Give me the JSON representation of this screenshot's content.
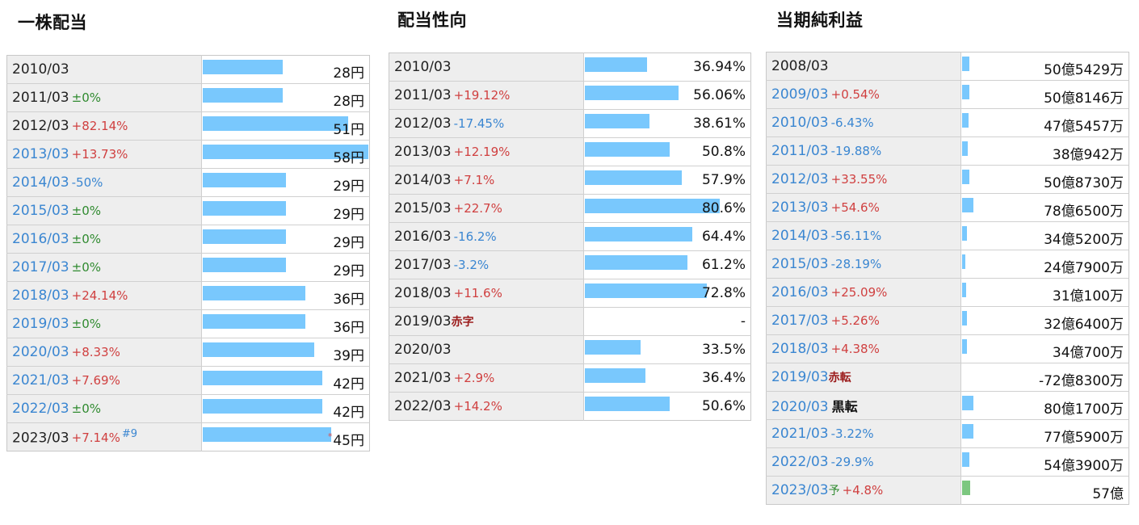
{
  "dividend": {
    "title": "一株配当",
    "max": 58,
    "rows": [
      {
        "year": "2010/03",
        "change": "",
        "dir": "",
        "value": "28円",
        "num": 28,
        "year_color": "black"
      },
      {
        "year": "2011/03",
        "change": "±0%",
        "dir": "zero",
        "value": "28円",
        "num": 28,
        "year_color": "black"
      },
      {
        "year": "2012/03",
        "change": "+82.14%",
        "dir": "pos",
        "value": "51円",
        "num": 51,
        "year_color": "black"
      },
      {
        "year": "2013/03",
        "change": "+13.73%",
        "dir": "pos",
        "value": "58円",
        "num": 58,
        "year_color": "blue"
      },
      {
        "year": "2014/03",
        "change": "-50%",
        "dir": "neg",
        "value": "29円",
        "num": 29,
        "year_color": "blue"
      },
      {
        "year": "2015/03",
        "change": "±0%",
        "dir": "zero",
        "value": "29円",
        "num": 29,
        "year_color": "blue"
      },
      {
        "year": "2016/03",
        "change": "±0%",
        "dir": "zero",
        "value": "29円",
        "num": 29,
        "year_color": "blue"
      },
      {
        "year": "2017/03",
        "change": "±0%",
        "dir": "zero",
        "value": "29円",
        "num": 29,
        "year_color": "blue"
      },
      {
        "year": "2018/03",
        "change": "+24.14%",
        "dir": "pos",
        "value": "36円",
        "num": 36,
        "year_color": "blue"
      },
      {
        "year": "2019/03",
        "change": "±0%",
        "dir": "zero",
        "value": "36円",
        "num": 36,
        "year_color": "blue"
      },
      {
        "year": "2020/03",
        "change": "+8.33%",
        "dir": "pos",
        "value": "39円",
        "num": 39,
        "year_color": "blue"
      },
      {
        "year": "2021/03",
        "change": "+7.69%",
        "dir": "pos",
        "value": "42円",
        "num": 42,
        "year_color": "blue"
      },
      {
        "year": "2022/03",
        "change": "±0%",
        "dir": "zero",
        "value": "42円",
        "num": 42,
        "year_color": "blue"
      },
      {
        "year": "2023/03",
        "change": "+7.14%",
        "dir": "pos",
        "value": "45円",
        "num": 45,
        "year_color": "black",
        "sup": "#9",
        "star": "*"
      }
    ]
  },
  "payout": {
    "title": "配当性向",
    "max": 80.6,
    "rows": [
      {
        "year": "2010/03",
        "change": "",
        "dir": "",
        "value": "36.94%",
        "num": 36.94
      },
      {
        "year": "2011/03",
        "change": "+19.12%",
        "dir": "pos",
        "value": "56.06%",
        "num": 56.06
      },
      {
        "year": "2012/03",
        "change": "-17.45%",
        "dir": "neg",
        "value": "38.61%",
        "num": 38.61
      },
      {
        "year": "2013/03",
        "change": "+12.19%",
        "dir": "pos",
        "value": "50.8%",
        "num": 50.8
      },
      {
        "year": "2014/03",
        "change": "+7.1%",
        "dir": "pos",
        "value": "57.9%",
        "num": 57.9
      },
      {
        "year": "2015/03",
        "change": "+22.7%",
        "dir": "pos",
        "value": "80.6%",
        "num": 80.6
      },
      {
        "year": "2016/03",
        "change": "-16.2%",
        "dir": "neg",
        "value": "64.4%",
        "num": 64.4
      },
      {
        "year": "2017/03",
        "change": "-3.2%",
        "dir": "neg",
        "value": "61.2%",
        "num": 61.2
      },
      {
        "year": "2018/03",
        "change": "+11.6%",
        "dir": "pos",
        "value": "72.8%",
        "num": 72.8
      },
      {
        "year": "2019/03",
        "change": "",
        "dir": "",
        "note": "赤字",
        "value": "-",
        "num": 0
      },
      {
        "year": "2020/03",
        "change": "",
        "dir": "",
        "value": "33.5%",
        "num": 33.5
      },
      {
        "year": "2021/03",
        "change": "+2.9%",
        "dir": "pos",
        "value": "36.4%",
        "num": 36.4
      },
      {
        "year": "2022/03",
        "change": "+14.2%",
        "dir": "pos",
        "value": "50.6%",
        "num": 50.6
      }
    ]
  },
  "profit": {
    "title": "当期純利益",
    "max": 1950,
    "rows": [
      {
        "year": "2008/03",
        "change": "",
        "dir": "",
        "value": "50億5429万",
        "num": 50.54,
        "year_color": "black"
      },
      {
        "year": "2009/03",
        "change": "+0.54%",
        "dir": "pos",
        "value": "50億8146万",
        "num": 50.81,
        "year_color": "blue"
      },
      {
        "year": "2010/03",
        "change": "-6.43%",
        "dir": "neg",
        "value": "47億5457万",
        "num": 47.55,
        "year_color": "blue"
      },
      {
        "year": "2011/03",
        "change": "-19.88%",
        "dir": "neg",
        "value": "38億942万",
        "num": 38.09,
        "year_color": "blue"
      },
      {
        "year": "2012/03",
        "change": "+33.55%",
        "dir": "pos",
        "value": "50億8730万",
        "num": 50.87,
        "year_color": "blue"
      },
      {
        "year": "2013/03",
        "change": "+54.6%",
        "dir": "pos",
        "value": "78億6500万",
        "num": 78.65,
        "year_color": "blue"
      },
      {
        "year": "2014/03",
        "change": "-56.11%",
        "dir": "neg",
        "value": "34億5200万",
        "num": 34.52,
        "year_color": "blue"
      },
      {
        "year": "2015/03",
        "change": "-28.19%",
        "dir": "neg",
        "value": "24億7900万",
        "num": 24.79,
        "year_color": "blue"
      },
      {
        "year": "2016/03",
        "change": "+25.09%",
        "dir": "pos",
        "value": "31億100万",
        "num": 31.01,
        "year_color": "blue"
      },
      {
        "year": "2017/03",
        "change": "+5.26%",
        "dir": "pos",
        "value": "32億6400万",
        "num": 32.64,
        "year_color": "blue"
      },
      {
        "year": "2018/03",
        "change": "+4.38%",
        "dir": "pos",
        "value": "34億700万",
        "num": 34.07,
        "year_color": "blue"
      },
      {
        "year": "2019/03",
        "change": "",
        "dir": "",
        "note": "赤転",
        "note_style": "red",
        "value": "-72億8300万",
        "num": 0,
        "year_color": "blue"
      },
      {
        "year": "2020/03",
        "change": "",
        "dir": "",
        "note": "黒転",
        "note_style": "black",
        "value": "80億1700万",
        "num": 80.17,
        "year_color": "blue"
      },
      {
        "year": "2021/03",
        "change": "-3.22%",
        "dir": "neg",
        "value": "77億5900万",
        "num": 77.59,
        "year_color": "blue"
      },
      {
        "year": "2022/03",
        "change": "-29.9%",
        "dir": "neg",
        "value": "54億3900万",
        "num": 54.39,
        "year_color": "blue"
      },
      {
        "year": "2023/03",
        "change": "+4.8%",
        "dir": "pos",
        "note": "予",
        "note_style": "green",
        "value": "57億",
        "num": 57,
        "year_color": "blue",
        "forecast": true
      }
    ]
  }
}
